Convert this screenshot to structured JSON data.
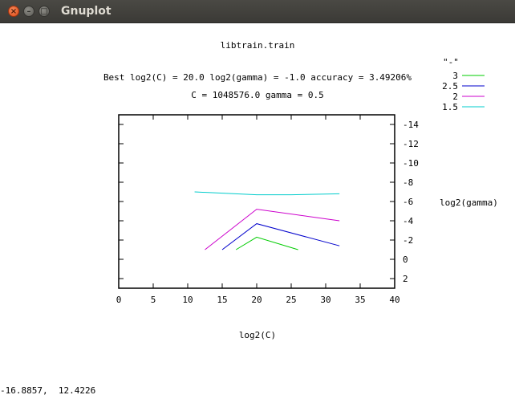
{
  "window": {
    "title": "Gnuplot",
    "close_glyph": "×",
    "minimize_glyph": "–",
    "maximize_glyph": "□"
  },
  "plot": {
    "title_line1": "libtrain.train",
    "title_line2": "Best log2(C) = 20.0  log2(gamma) = -1.0  accuracy = 3.49206%",
    "title_line3": "C = 1048576.0  gamma = 0.5"
  },
  "chart_data": {
    "type": "line",
    "xlabel": "log2(C)",
    "ylabel": "log2(gamma)",
    "xlim": [
      0,
      40
    ],
    "ylim": [
      -15,
      3
    ],
    "x_ticks": [
      0,
      5,
      10,
      15,
      20,
      25,
      30,
      35,
      40
    ],
    "x_tick_labels": [
      "0",
      "5",
      "10",
      "15",
      "20",
      "25",
      "30",
      "35",
      "40"
    ],
    "y_ticks": [
      -14,
      -12,
      -10,
      -8,
      -6,
      -4,
      -2,
      0,
      2
    ],
    "y_tick_labels": [
      "-14",
      "-12",
      "-10",
      "-8",
      "-6",
      "-4",
      "-2",
      "0",
      "2"
    ],
    "legend_title": "\"-\"",
    "legend_position": "top-right",
    "series": [
      {
        "name": "3",
        "color": "#00cc00",
        "points": [
          [
            17,
            -1
          ],
          [
            20,
            -2.3
          ],
          [
            26,
            -1
          ]
        ]
      },
      {
        "name": "2.5",
        "color": "#0000cc",
        "points": [
          [
            15,
            -1
          ],
          [
            20,
            -3.7
          ],
          [
            32,
            -1.4
          ]
        ]
      },
      {
        "name": "2",
        "color": "#cc00cc",
        "points": [
          [
            12.5,
            -1
          ],
          [
            20,
            -5.2
          ],
          [
            32,
            -4
          ]
        ]
      },
      {
        "name": "1.5",
        "color": "#00cccc",
        "points": [
          [
            11,
            -7
          ],
          [
            20,
            -6.7
          ],
          [
            25,
            -6.7
          ],
          [
            32,
            -6.8
          ]
        ]
      }
    ]
  },
  "status": {
    "mouse_position": "-16.8857,  12.4226"
  }
}
